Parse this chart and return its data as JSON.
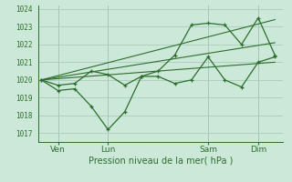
{
  "background_color": "#cce8d8",
  "grid_color": "#aaccb8",
  "line_color": "#2d6e2d",
  "xlabel": "Pression niveau de la mer( hPa )",
  "ylim": [
    1016.5,
    1024.2
  ],
  "yticks": [
    1017,
    1018,
    1019,
    1020,
    1021,
    1022,
    1023,
    1024
  ],
  "xtick_labels": [
    "Ven",
    "Lun",
    "Sam",
    "Dim"
  ],
  "xtick_positions": [
    1,
    4,
    10,
    13
  ],
  "xlim": [
    -0.2,
    14.5
  ],
  "line1_x": [
    0,
    1,
    2,
    3,
    4,
    5,
    6,
    7,
    8,
    9,
    10,
    11,
    12,
    13,
    14
  ],
  "line1_y": [
    1020.0,
    1019.4,
    1019.5,
    1018.5,
    1017.2,
    1018.2,
    1020.2,
    1020.2,
    1019.8,
    1020.0,
    1021.3,
    1020.0,
    1019.6,
    1021.0,
    1021.3
  ],
  "line2_x": [
    0,
    1,
    2,
    3,
    4,
    5,
    6,
    7,
    8,
    9,
    10,
    11,
    12,
    13,
    14
  ],
  "line2_y": [
    1020.0,
    1019.7,
    1019.8,
    1020.5,
    1020.3,
    1019.7,
    1020.2,
    1020.5,
    1021.4,
    1023.1,
    1023.2,
    1023.1,
    1022.0,
    1023.5,
    1021.4
  ],
  "line3_x": [
    0,
    14
  ],
  "line3_y": [
    1020.0,
    1021.0
  ],
  "line4_x": [
    0,
    14
  ],
  "line4_y": [
    1020.0,
    1022.1
  ],
  "line5_x": [
    0,
    14
  ],
  "line5_y": [
    1020.0,
    1023.4
  ]
}
